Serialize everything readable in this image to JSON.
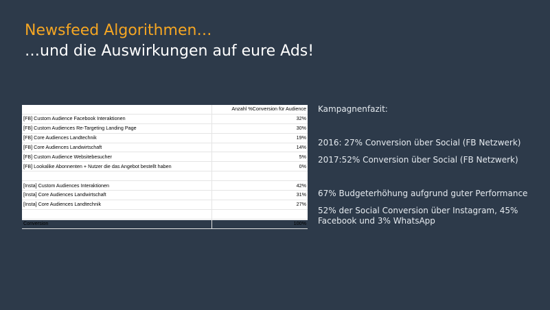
{
  "slide": {
    "title_line1": "Newsfeed Algorithmen…",
    "title_line2": "…und die Auswirkungen auf eure Ads!"
  },
  "table": {
    "header": [
      "",
      "Anzahl %Conversion für Audience"
    ],
    "rows": [
      {
        "label": "[FB] Custom Audience Facebook Interaktionen",
        "value": "32%"
      },
      {
        "label": "[FB] Custom Audiences Re-Targeting Landing Page",
        "value": "30%"
      },
      {
        "label": "[FB] Core Audiences Landtechnik",
        "value": "19%"
      },
      {
        "label": "[FB] Core Audiences Landwirtschaft",
        "value": "14%"
      },
      {
        "label": "[FB] Custom Audience Websitebesucher",
        "value": "5%"
      },
      {
        "label": "[FB] Lookalike Abonnenten + Nutzer die das Angebot bestellt haben",
        "value": "0%"
      },
      {
        "label": "",
        "value": ""
      },
      {
        "label": "[Insta] Custom Audiences Interaktionen",
        "value": "42%"
      },
      {
        "label": "[Insta] Core Audiences Landwirtschaft",
        "value": "31%"
      },
      {
        "label": "[Insta] Core Audiences Landtechnik",
        "value": "27%"
      },
      {
        "label": "",
        "value": ""
      },
      {
        "label": "Conversion",
        "value": "100%"
      }
    ]
  },
  "summary": {
    "heading": "Kampagnenfazit:",
    "line_2016": "2016: 27% Conversion über Social (FB Netzwerk)",
    "line_2017": "2017:52% Conversion über Social (FB Netzwerk)",
    "budget": "67% Budgeterhöhung aufgrund guter Performance",
    "split": "52% der Social Conversion über Instagram, 45% Facebook und 3% WhatsApp"
  },
  "colors": {
    "background": "#2d3a4a",
    "title_accent": "#f5a623",
    "text": "#ffffff"
  }
}
